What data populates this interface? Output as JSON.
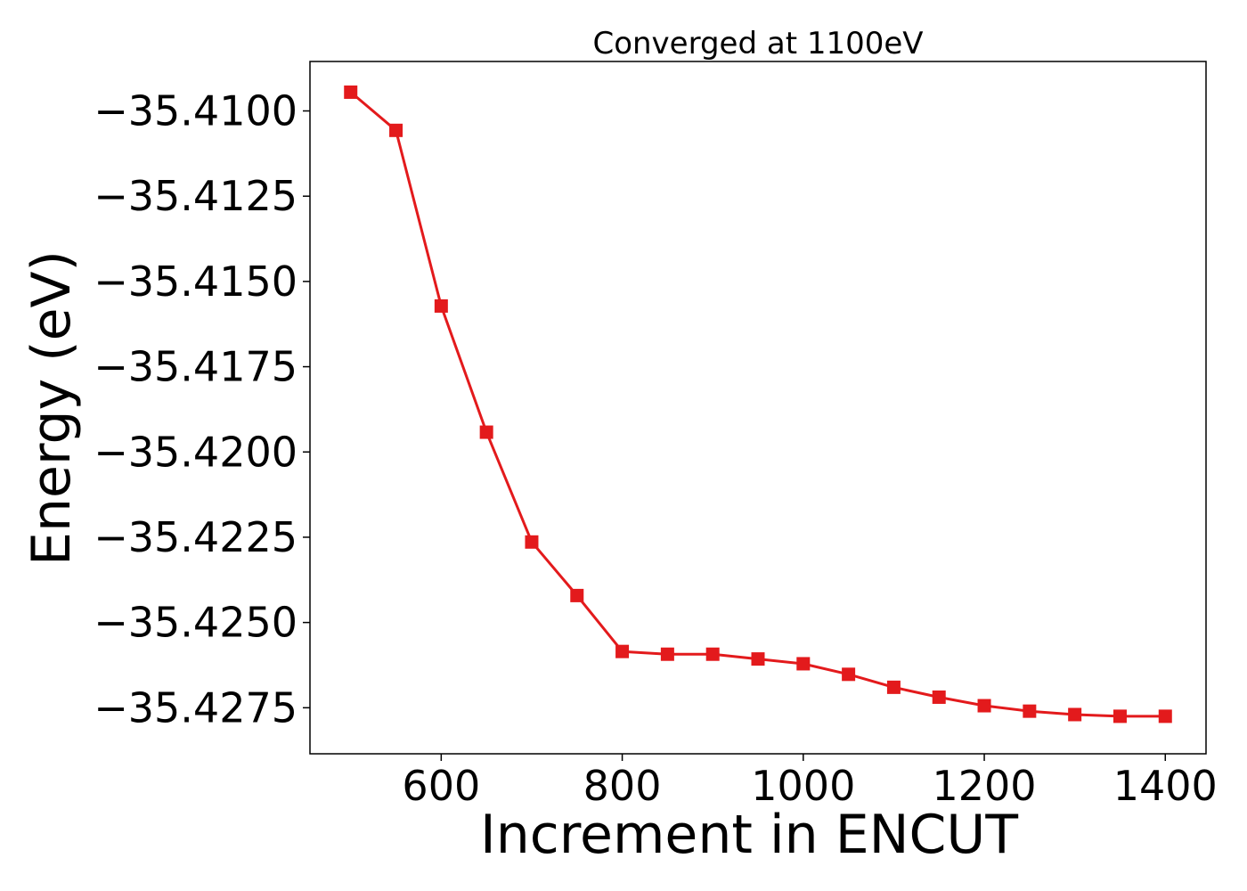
{
  "chart_data": {
    "type": "line",
    "title": "Converged at 1100eV",
    "xlabel": "Increment in ENCUT",
    "ylabel": "Energy (eV)",
    "xlim": [
      455,
      1445
    ],
    "ylim": [
      -35.42885,
      -35.40855
    ],
    "x_ticks": [
      600,
      800,
      1000,
      1200,
      1400
    ],
    "x_tick_labels": [
      "600",
      "800",
      "1000",
      "1200",
      "1400"
    ],
    "y_ticks": [
      -35.41,
      -35.4125,
      -35.415,
      -35.4175,
      -35.42,
      -35.4225,
      -35.425,
      -35.4275
    ],
    "y_tick_labels": [
      "−35.4100",
      "−35.4125",
      "−35.4150",
      "−35.4175",
      "−35.4200",
      "−35.4225",
      "−35.4250",
      "−35.4275"
    ],
    "grid": false,
    "series": [
      {
        "color": "#e31a1c",
        "marker": "square",
        "x": [
          500,
          550,
          600,
          650,
          700,
          750,
          800,
          850,
          900,
          950,
          1000,
          1050,
          1100,
          1150,
          1200,
          1250,
          1300,
          1350,
          1400
        ],
        "y": [
          -35.40945,
          -35.41057,
          -35.41572,
          -35.41942,
          -35.42264,
          -35.42421,
          -35.42585,
          -35.42593,
          -35.42593,
          -35.42607,
          -35.42621,
          -35.42652,
          -35.4269,
          -35.42719,
          -35.42744,
          -35.4276,
          -35.4277,
          -35.42775,
          -35.42775
        ]
      }
    ]
  }
}
